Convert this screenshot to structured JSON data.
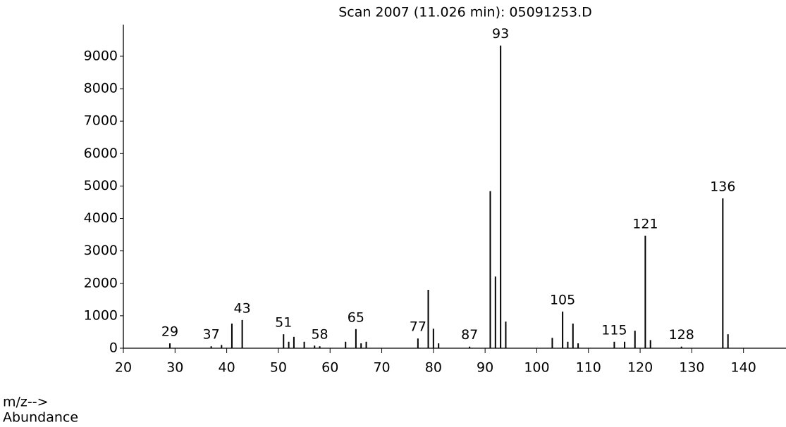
{
  "chart_data": {
    "type": "stick",
    "title": "Scan 2007 (11.026 min): 05091253.D",
    "x_label": "m/z-->",
    "y_label": "Abundance",
    "color": "#000000",
    "x": [
      29,
      37,
      39,
      41,
      43,
      51,
      52,
      53,
      55,
      57,
      58,
      63,
      65,
      66,
      67,
      77,
      79,
      80,
      81,
      87,
      91,
      92,
      93,
      94,
      103,
      105,
      106,
      107,
      108,
      115,
      117,
      119,
      121,
      122,
      128,
      136,
      137
    ],
    "values": [
      150,
      60,
      100,
      760,
      870,
      430,
      200,
      350,
      200,
      80,
      60,
      200,
      590,
      150,
      200,
      300,
      1800,
      600,
      150,
      50,
      4840,
      2210,
      9330,
      820,
      320,
      1130,
      200,
      760,
      150,
      200,
      200,
      540,
      3470,
      250,
      50,
      4620,
      430
    ],
    "value_labels": [
      "29",
      "37",
      null,
      null,
      "43",
      "51",
      null,
      null,
      null,
      null,
      "58",
      null,
      "65",
      null,
      null,
      "77",
      null,
      null,
      null,
      "87",
      null,
      null,
      "93",
      null,
      null,
      "105",
      null,
      null,
      null,
      "115",
      null,
      null,
      "121",
      null,
      "128",
      "136",
      null
    ],
    "xlim": [
      20,
      147
    ],
    "xticks": [
      20,
      30,
      40,
      50,
      60,
      70,
      80,
      90,
      100,
      110,
      120,
      130,
      140
    ],
    "ylim": [
      0,
      10300
    ],
    "yticks": [
      0,
      1000,
      2000,
      3000,
      4000,
      5000,
      6000,
      7000,
      8000,
      9000
    ]
  }
}
